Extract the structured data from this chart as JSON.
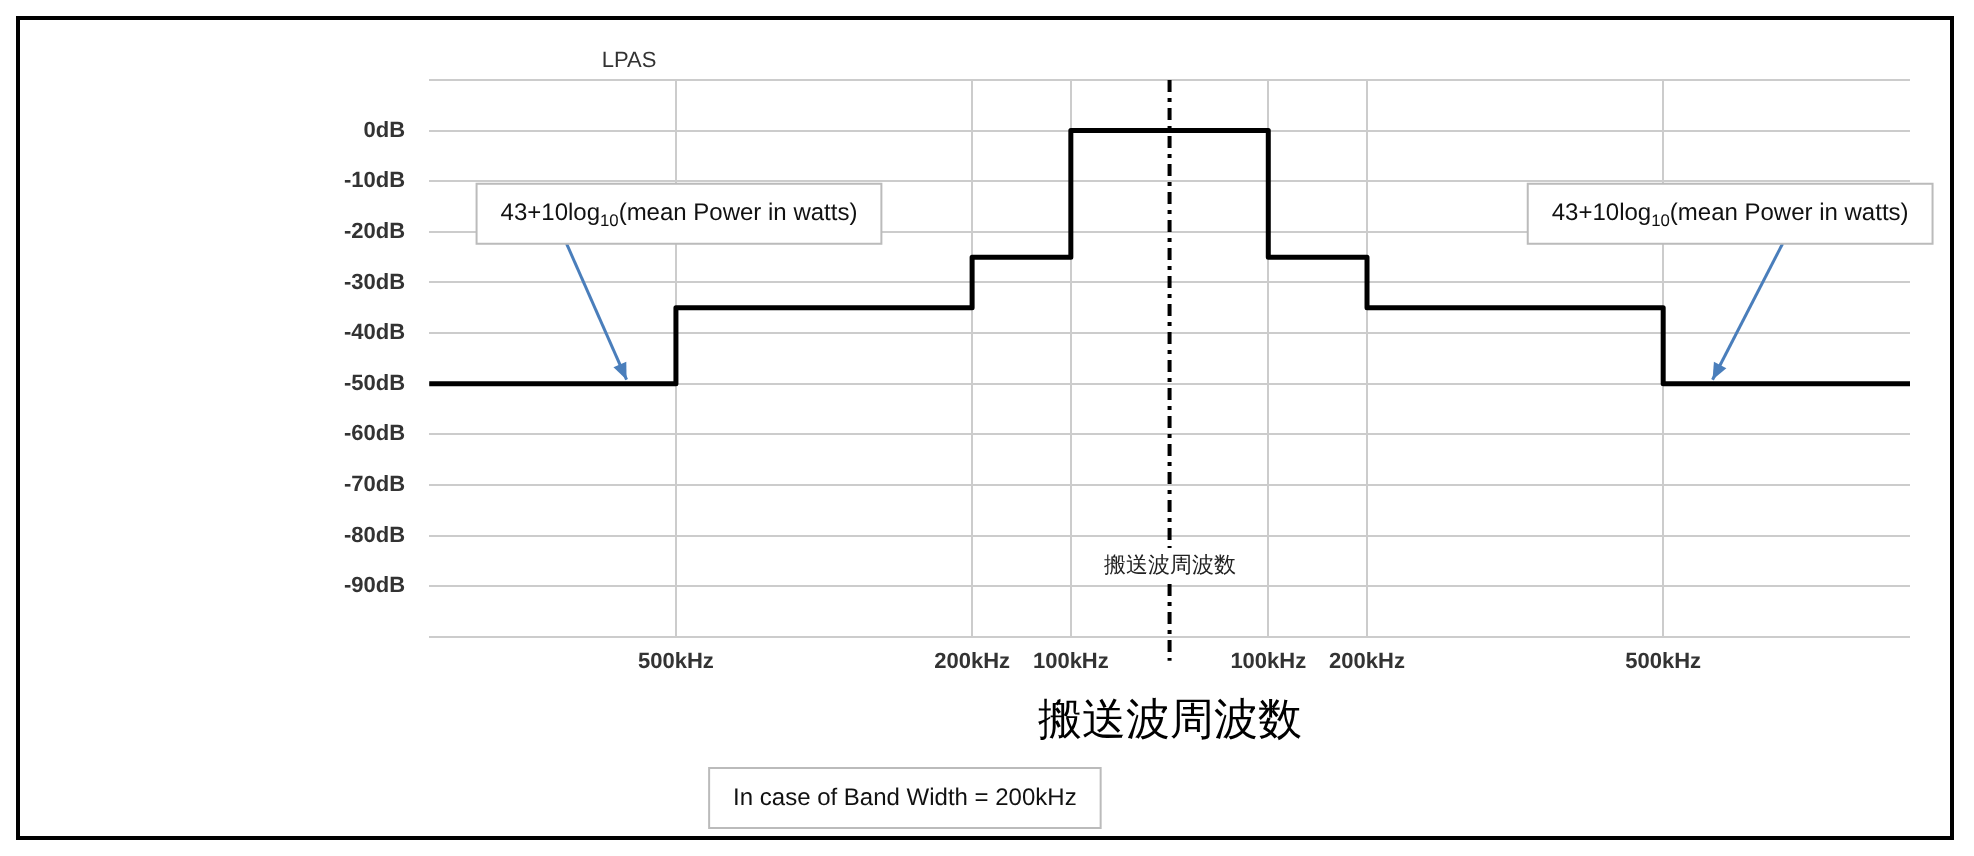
{
  "chart_data": {
    "type": "step",
    "title": "LPAS",
    "xlabel": "搬送波周波数",
    "x": [
      -750,
      -500,
      -200,
      -100,
      100,
      200,
      500,
      750
    ],
    "series": [
      {
        "color": "#000000",
        "values": [
          -50,
          -35,
          -25,
          0,
          -25,
          -35,
          -50,
          -50
        ]
      }
    ],
    "xlim": [
      -750,
      750
    ],
    "xticks": [
      {
        "value": -500,
        "label": "500kHz"
      },
      {
        "value": -200,
        "label": "200kHz"
      },
      {
        "value": -100,
        "label": "100kHz"
      },
      {
        "value": 100,
        "label": "100kHz"
      },
      {
        "value": 200,
        "label": "200kHz"
      },
      {
        "value": 500,
        "label": "500kHz"
      }
    ],
    "ylim": [
      -100,
      10
    ],
    "yticks": [
      {
        "value": -100,
        "label": null
      },
      {
        "value": -90,
        "label": "-90dB"
      },
      {
        "value": -80,
        "label": "-80dB"
      },
      {
        "value": -70,
        "label": "-70dB"
      },
      {
        "value": -60,
        "label": "-60dB"
      },
      {
        "value": -50,
        "label": "-50dB"
      },
      {
        "value": -40,
        "label": "-40dB"
      },
      {
        "value": -30,
        "label": "-30dB"
      },
      {
        "value": -20,
        "label": "-20dB"
      },
      {
        "value": -10,
        "label": "-10dB"
      },
      {
        "value": 0,
        "label": "0dB"
      },
      {
        "value": 10,
        "label": null
      }
    ],
    "ref_lines": [
      {
        "axis": "x",
        "value": 0,
        "label": "搬送波周波数",
        "color": "#000000",
        "line_style": "dashdot"
      }
    ],
    "annotations": [
      {
        "text": "43+10log$_{10}$(mean Power in watts)",
        "x": -550,
        "y": -50
      },
      {
        "text": "43+10log$_{10}$(mean Power in watts)",
        "x": 550,
        "y": -50
      },
      "In case of Band Width = 200kHz"
    ],
    "grid": true,
    "legend": false,
    "marker": "none",
    "line_style": "solid"
  }
}
